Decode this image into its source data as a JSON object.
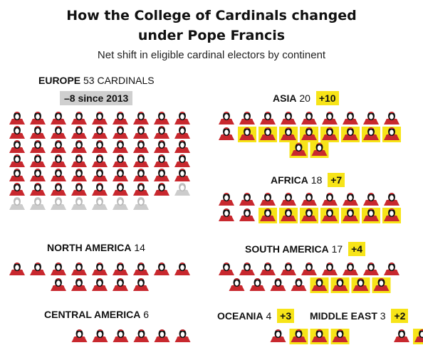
{
  "chart_data": {
    "type": "pictogram",
    "title_lines": [
      "How the College of Cardinals changed",
      "under Pope Francis"
    ],
    "subtitle": "Net shift in eligible cardinal electors by continent",
    "unit_note": "CARDINALS",
    "colors": {
      "robe": "#c8282e",
      "head": "#111111",
      "face": "#ffffff",
      "highlight": "#f7e418",
      "removed": "#cccccc",
      "grey_badge": "#cfcfcf"
    },
    "regions": [
      {
        "name": "EUROPE",
        "count": 53,
        "count_text": "53",
        "unit": "CARDINALS",
        "change": -8,
        "change_text": "–8 since 2013",
        "removed": 8,
        "added": 0
      },
      {
        "name": "ASIA",
        "count": 20,
        "count_text": "20",
        "change": 10,
        "change_text": "+10",
        "removed": 0,
        "added": 10
      },
      {
        "name": "AFRICA",
        "count": 18,
        "count_text": "18",
        "change": 7,
        "change_text": "+7",
        "removed": 0,
        "added": 7
      },
      {
        "name": "NORTH AMERICA",
        "count": 14,
        "count_text": "14",
        "change": 0,
        "change_text": "",
        "removed": 0,
        "added": 0
      },
      {
        "name": "SOUTH AMERICA",
        "count": 17,
        "count_text": "17",
        "change": 4,
        "change_text": "+4",
        "removed": 0,
        "added": 4
      },
      {
        "name": "CENTRAL AMERICA",
        "count": 6,
        "count_text": "6",
        "change": 0,
        "change_text": "",
        "removed": 0,
        "added": 0
      },
      {
        "name": "OCEANIA",
        "count": 4,
        "count_text": "4",
        "change": 3,
        "change_text": "+3",
        "removed": 0,
        "added": 3
      },
      {
        "name": "MIDDLE EAST",
        "count": 3,
        "count_text": "3",
        "change": 2,
        "change_text": "+2",
        "removed": 0,
        "added": 2
      }
    ]
  }
}
